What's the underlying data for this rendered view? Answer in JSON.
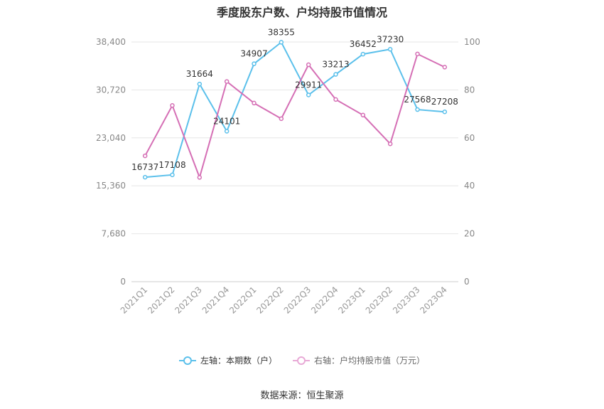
{
  "chart_data": {
    "type": "line",
    "title": "季度股东户数、户均持股市值情况",
    "categories": [
      "2021Q1",
      "2021Q2",
      "2021Q3",
      "2021Q4",
      "2022Q1",
      "2022Q2",
      "2022Q3",
      "2022Q4",
      "2023Q1",
      "2023Q2",
      "2023Q3",
      "2023Q4"
    ],
    "left_axis": {
      "ticks": [
        "0",
        "7,680",
        "15,360",
        "23,040",
        "30,720",
        "38,400"
      ],
      "range": [
        0,
        38400
      ]
    },
    "right_axis": {
      "ticks": [
        "0",
        "20",
        "40",
        "60",
        "80",
        "100"
      ],
      "range": [
        0,
        100
      ]
    },
    "series": [
      {
        "name": "左轴：本期数（户）",
        "axis": "left",
        "color": "#5bc0eb",
        "values": [
          16737,
          17108,
          31664,
          24101,
          34907,
          38355,
          29911,
          33213,
          36452,
          37230,
          27568,
          27208
        ],
        "labels": [
          "16737",
          "17108",
          "31664",
          "24101",
          "34907",
          "38355",
          "29911",
          "33213",
          "36452",
          "37230",
          "27568",
          "27208"
        ]
      },
      {
        "name": "右轴：户均持股市值（万元）",
        "axis": "right",
        "color": "#d56fb5",
        "values": [
          52.5,
          73.5,
          43.5,
          83.5,
          74.5,
          68.0,
          90.5,
          76.0,
          69.5,
          57.5,
          95.0,
          89.5
        ]
      }
    ],
    "legend_position": "bottom",
    "grid": true
  },
  "source": "数据来源：恒生聚源"
}
